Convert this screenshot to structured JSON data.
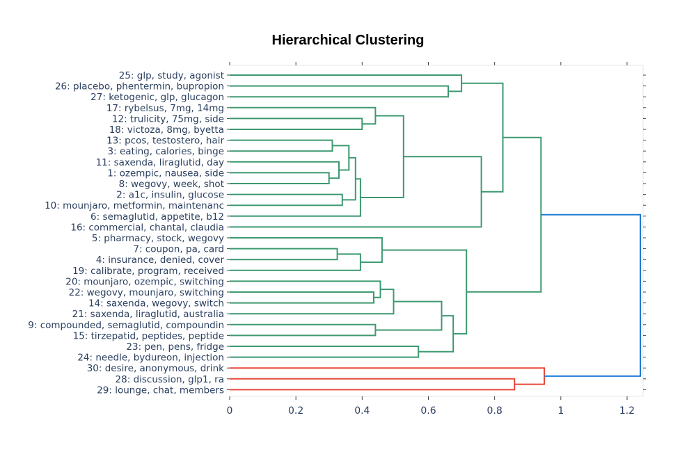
{
  "chart_data": {
    "type": "dendrogram",
    "title": "Hierarchical Clustering",
    "xlim": [
      0,
      1.24
    ],
    "xticks": [
      "0",
      "0.2",
      "0.4",
      "0.6",
      "0.8",
      "1",
      "1.2"
    ],
    "xtick_values": [
      0,
      0.2,
      0.4,
      0.6,
      0.8,
      1,
      1.2
    ],
    "leaves": [
      "25: glp, study, agonist",
      "26: placebo, phentermin, bupropion",
      "27: ketogenic, glp, glucagon",
      "17: rybelsus, 7mg, 14mg",
      "12: trulicity, 75mg, side",
      "18: victoza, 8mg, byetta",
      "13: pcos, testostero, hair",
      "3: eating, calories, binge",
      "11: saxenda, liraglutid, day",
      "1: ozempic, nausea, side",
      "8: wegovy, week, shot",
      "2: a1c, insulin, glucose",
      "10: mounjaro, metformin, maintenanc",
      "6: semaglutid, appetite, b12",
      "16: commercial, chantal, claudia",
      "5: pharmacy, stock, wegovy",
      "7: coupon, pa, card",
      "4: insurance, denied, cover",
      "19: calibrate, program, received",
      "20: mounjaro, ozempic, switching",
      "22: wegovy, mounjaro, switching",
      "14: saxenda, wegovy, switch",
      "21: saxenda, liraglutid, australia",
      "9: compounded, semaglutid, compoundin",
      "15: tirzepatid, peptides, peptide",
      "23: pen, pens, fridge",
      "24: needle, bydureon, injection",
      "30: desire, anonymous, drink",
      "28: discussion, glp1, ra",
      "29: lounge, chat, members"
    ],
    "merges": [
      {
        "left": "L1",
        "right": "L2",
        "distance": 0.66,
        "color": "green"
      },
      {
        "left": "L0",
        "right": "N0",
        "distance": 0.7,
        "color": "green"
      },
      {
        "left": "L4",
        "right": "L5",
        "distance": 0.4,
        "color": "green"
      },
      {
        "left": "L3",
        "right": "N2",
        "distance": 0.44,
        "color": "green"
      },
      {
        "left": "L9",
        "right": "L10",
        "distance": 0.3,
        "color": "green"
      },
      {
        "left": "L8",
        "right": "N4",
        "distance": 0.33,
        "color": "green"
      },
      {
        "left": "L6",
        "right": "L7",
        "distance": 0.31,
        "color": "green"
      },
      {
        "left": "N6",
        "right": "N5",
        "distance": 0.36,
        "color": "green"
      },
      {
        "left": "L11",
        "right": "L12",
        "distance": 0.34,
        "color": "green"
      },
      {
        "left": "N7",
        "right": "N8",
        "distance": 0.38,
        "color": "green"
      },
      {
        "left": "N9",
        "right": "L13",
        "distance": 0.395,
        "color": "green"
      },
      {
        "left": "N3",
        "right": "N10",
        "distance": 0.525,
        "color": "green"
      },
      {
        "left": "N11",
        "right": "L14",
        "distance": 0.76,
        "color": "green"
      },
      {
        "left": "N1",
        "right": "N12",
        "distance": 0.825,
        "color": "green"
      },
      {
        "left": "L16",
        "right": "L17",
        "distance": 0.325,
        "color": "green"
      },
      {
        "left": "N14",
        "right": "L18",
        "distance": 0.395,
        "color": "green"
      },
      {
        "left": "L15",
        "right": "N15",
        "distance": 0.46,
        "color": "green"
      },
      {
        "left": "L20",
        "right": "L21",
        "distance": 0.435,
        "color": "green"
      },
      {
        "left": "L19",
        "right": "N17",
        "distance": 0.455,
        "color": "green"
      },
      {
        "left": "N18",
        "right": "L22",
        "distance": 0.495,
        "color": "green"
      },
      {
        "left": "L23",
        "right": "L24",
        "distance": 0.44,
        "color": "green"
      },
      {
        "left": "N19",
        "right": "N20",
        "distance": 0.64,
        "color": "green"
      },
      {
        "left": "L25",
        "right": "L26",
        "distance": 0.57,
        "color": "green"
      },
      {
        "left": "N21",
        "right": "N22",
        "distance": 0.675,
        "color": "green"
      },
      {
        "left": "N16",
        "right": "N23",
        "distance": 0.715,
        "color": "green"
      },
      {
        "left": "N13",
        "right": "N24",
        "distance": 0.94,
        "color": "green"
      },
      {
        "left": "L28",
        "right": "L29",
        "distance": 0.86,
        "color": "red"
      },
      {
        "left": "L27",
        "right": "N26",
        "distance": 0.95,
        "color": "red"
      },
      {
        "left": "N25",
        "right": "N27",
        "distance": 1.24,
        "color": "blue"
      }
    ],
    "colors": {
      "green": "#3d9970",
      "red": "#e8483b",
      "blue": "#1f7bd6",
      "text": "#2a3f5f",
      "axis_line": "#444444",
      "title": "#000000"
    },
    "grid": false,
    "legend": "none"
  }
}
